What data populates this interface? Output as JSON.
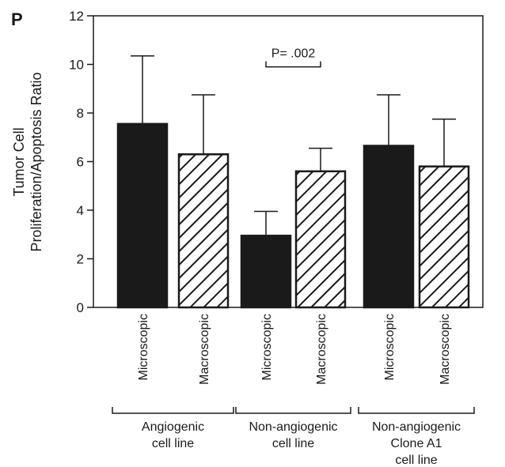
{
  "panel_label": "P",
  "chart_data": {
    "type": "bar",
    "ylabel_line1": "Tumor Cell",
    "ylabel_line2": "Proliferation/Apoptosis Ratio",
    "ylim": [
      0,
      12
    ],
    "yticks": [
      "0",
      "2",
      "4",
      "6",
      "8",
      "10",
      "12"
    ],
    "grid": false,
    "bars": [
      {
        "category": "Microscopic",
        "value": 7.55,
        "error": 2.8,
        "fill": "solid"
      },
      {
        "category": "Macroscopic",
        "value": 6.3,
        "error": 2.45,
        "fill": "hatched"
      },
      {
        "category": "Microscopic",
        "value": 2.95,
        "error": 1.0,
        "fill": "solid"
      },
      {
        "category": "Macroscopic",
        "value": 5.6,
        "error": 0.95,
        "fill": "hatched"
      },
      {
        "category": "Microscopic",
        "value": 6.65,
        "error": 2.1,
        "fill": "solid"
      },
      {
        "category": "Macroscopic",
        "value": 5.8,
        "error": 1.95,
        "fill": "hatched"
      }
    ],
    "groups": [
      {
        "lines": [
          "Angiogenic",
          "cell line"
        ],
        "bars": [
          0,
          1
        ]
      },
      {
        "lines": [
          "Non-angiogenic",
          "cell line"
        ],
        "bars": [
          2,
          3
        ]
      },
      {
        "lines": [
          "Non-angiogenic",
          "Clone A1",
          "cell line"
        ],
        "bars": [
          4,
          5
        ]
      }
    ],
    "annotation": {
      "text": "P= .002",
      "bars": [
        2,
        3
      ],
      "y": 9.9
    }
  }
}
